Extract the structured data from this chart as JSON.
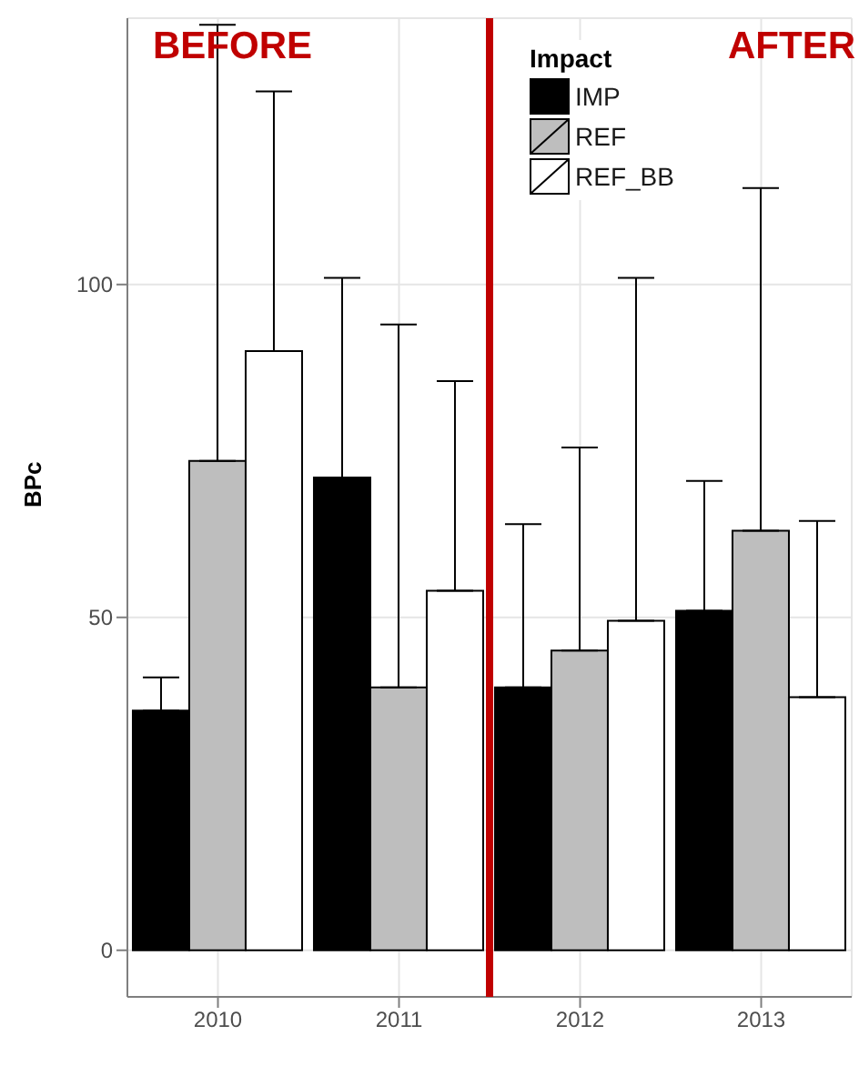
{
  "chart_data": {
    "type": "bar",
    "ylabel": "BPc",
    "legend_title": "Impact",
    "categories": [
      "2010",
      "2011",
      "2012",
      "2013"
    ],
    "series": [
      {
        "name": "IMP",
        "color": "#000000",
        "values": [
          36,
          71,
          39.5,
          51
        ],
        "errors": [
          [
            36,
            41
          ],
          [
            71,
            101
          ],
          [
            39.5,
            64
          ],
          [
            51,
            70.5
          ]
        ]
      },
      {
        "name": "REF",
        "color": "#bebebe",
        "values": [
          73.5,
          39.5,
          45,
          63
        ],
        "errors": [
          [
            73.5,
            139
          ],
          [
            39.5,
            94
          ],
          [
            45,
            75.5
          ],
          [
            63,
            114.5
          ]
        ]
      },
      {
        "name": "REF_BB",
        "color": "#ffffff",
        "values": [
          90,
          54,
          49.5,
          38
        ],
        "errors": [
          [
            90,
            129
          ],
          [
            54,
            85.5
          ],
          [
            49.5,
            101
          ],
          [
            38,
            64.5
          ]
        ]
      }
    ],
    "ylim": [
      -7,
      140
    ],
    "yticks": [
      0,
      50,
      100
    ],
    "grid": true,
    "legend": "top",
    "annotations": [
      "BEFORE",
      "AFTER"
    ]
  }
}
